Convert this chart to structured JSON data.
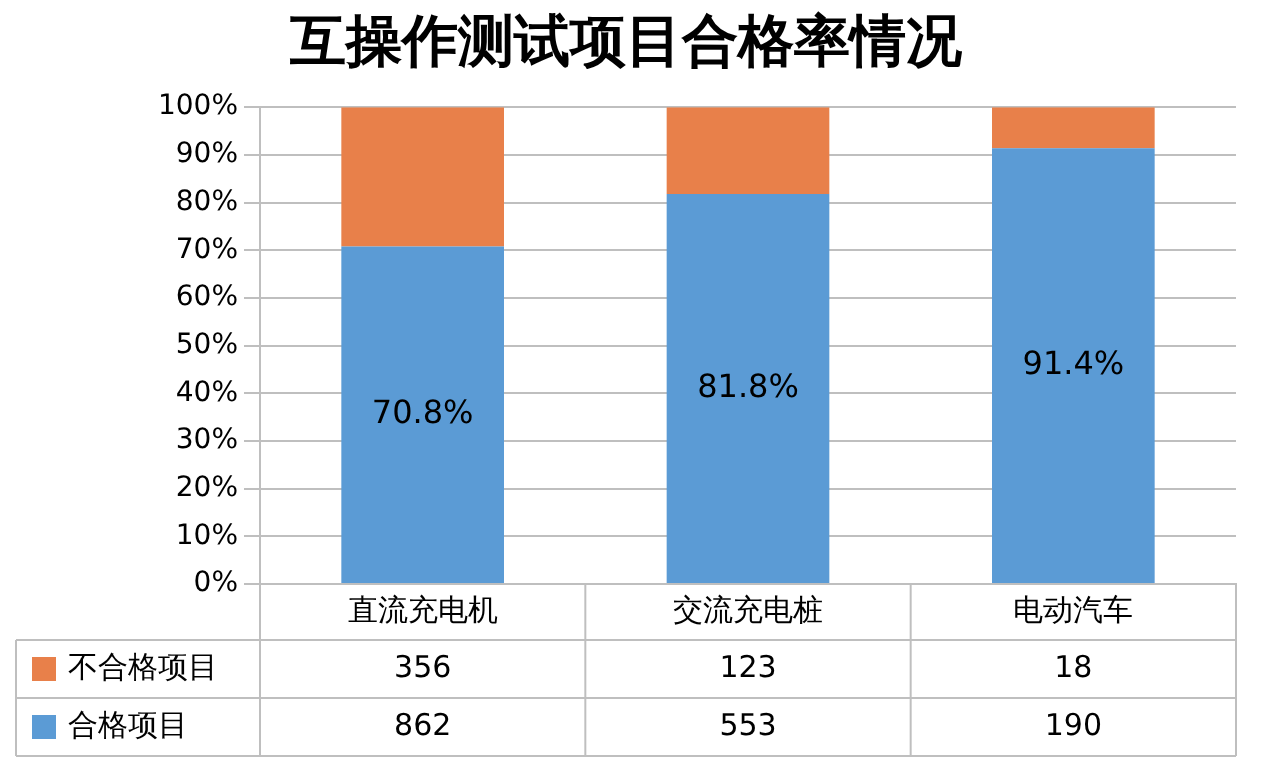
{
  "chart_data": {
    "type": "bar",
    "title": "互操作测试项目合格率情况",
    "categories": [
      "直流充电机",
      "交流充电桩",
      "电动汽车"
    ],
    "stacked": true,
    "series": [
      {
        "name": "合格项目",
        "color": "#5b9bd5",
        "values": [
          70.8,
          81.8,
          91.4
        ],
        "value_labels": [
          "70.8%",
          "81.8%",
          "91.4%"
        ]
      },
      {
        "name": "不合格项目",
        "color": "#e8804a",
        "values": [
          29.2,
          18.2,
          8.6
        ]
      }
    ],
    "ylim": [
      0,
      100
    ],
    "yticks": [
      {
        "value": 0,
        "label": "0%"
      },
      {
        "value": 10,
        "label": "10%"
      },
      {
        "value": 20,
        "label": "20%"
      },
      {
        "value": 30,
        "label": "30%"
      },
      {
        "value": 40,
        "label": "40%"
      },
      {
        "value": 50,
        "label": "50%"
      },
      {
        "value": 60,
        "label": "60%"
      },
      {
        "value": 70,
        "label": "70%"
      },
      {
        "value": 80,
        "label": "80%"
      },
      {
        "value": 90,
        "label": "90%"
      },
      {
        "value": 100,
        "label": "100%"
      }
    ],
    "grid": "y",
    "legend": "bottom left",
    "annotations": [
      "356",
      "123",
      "18",
      "862",
      "553",
      "190"
    ]
  }
}
